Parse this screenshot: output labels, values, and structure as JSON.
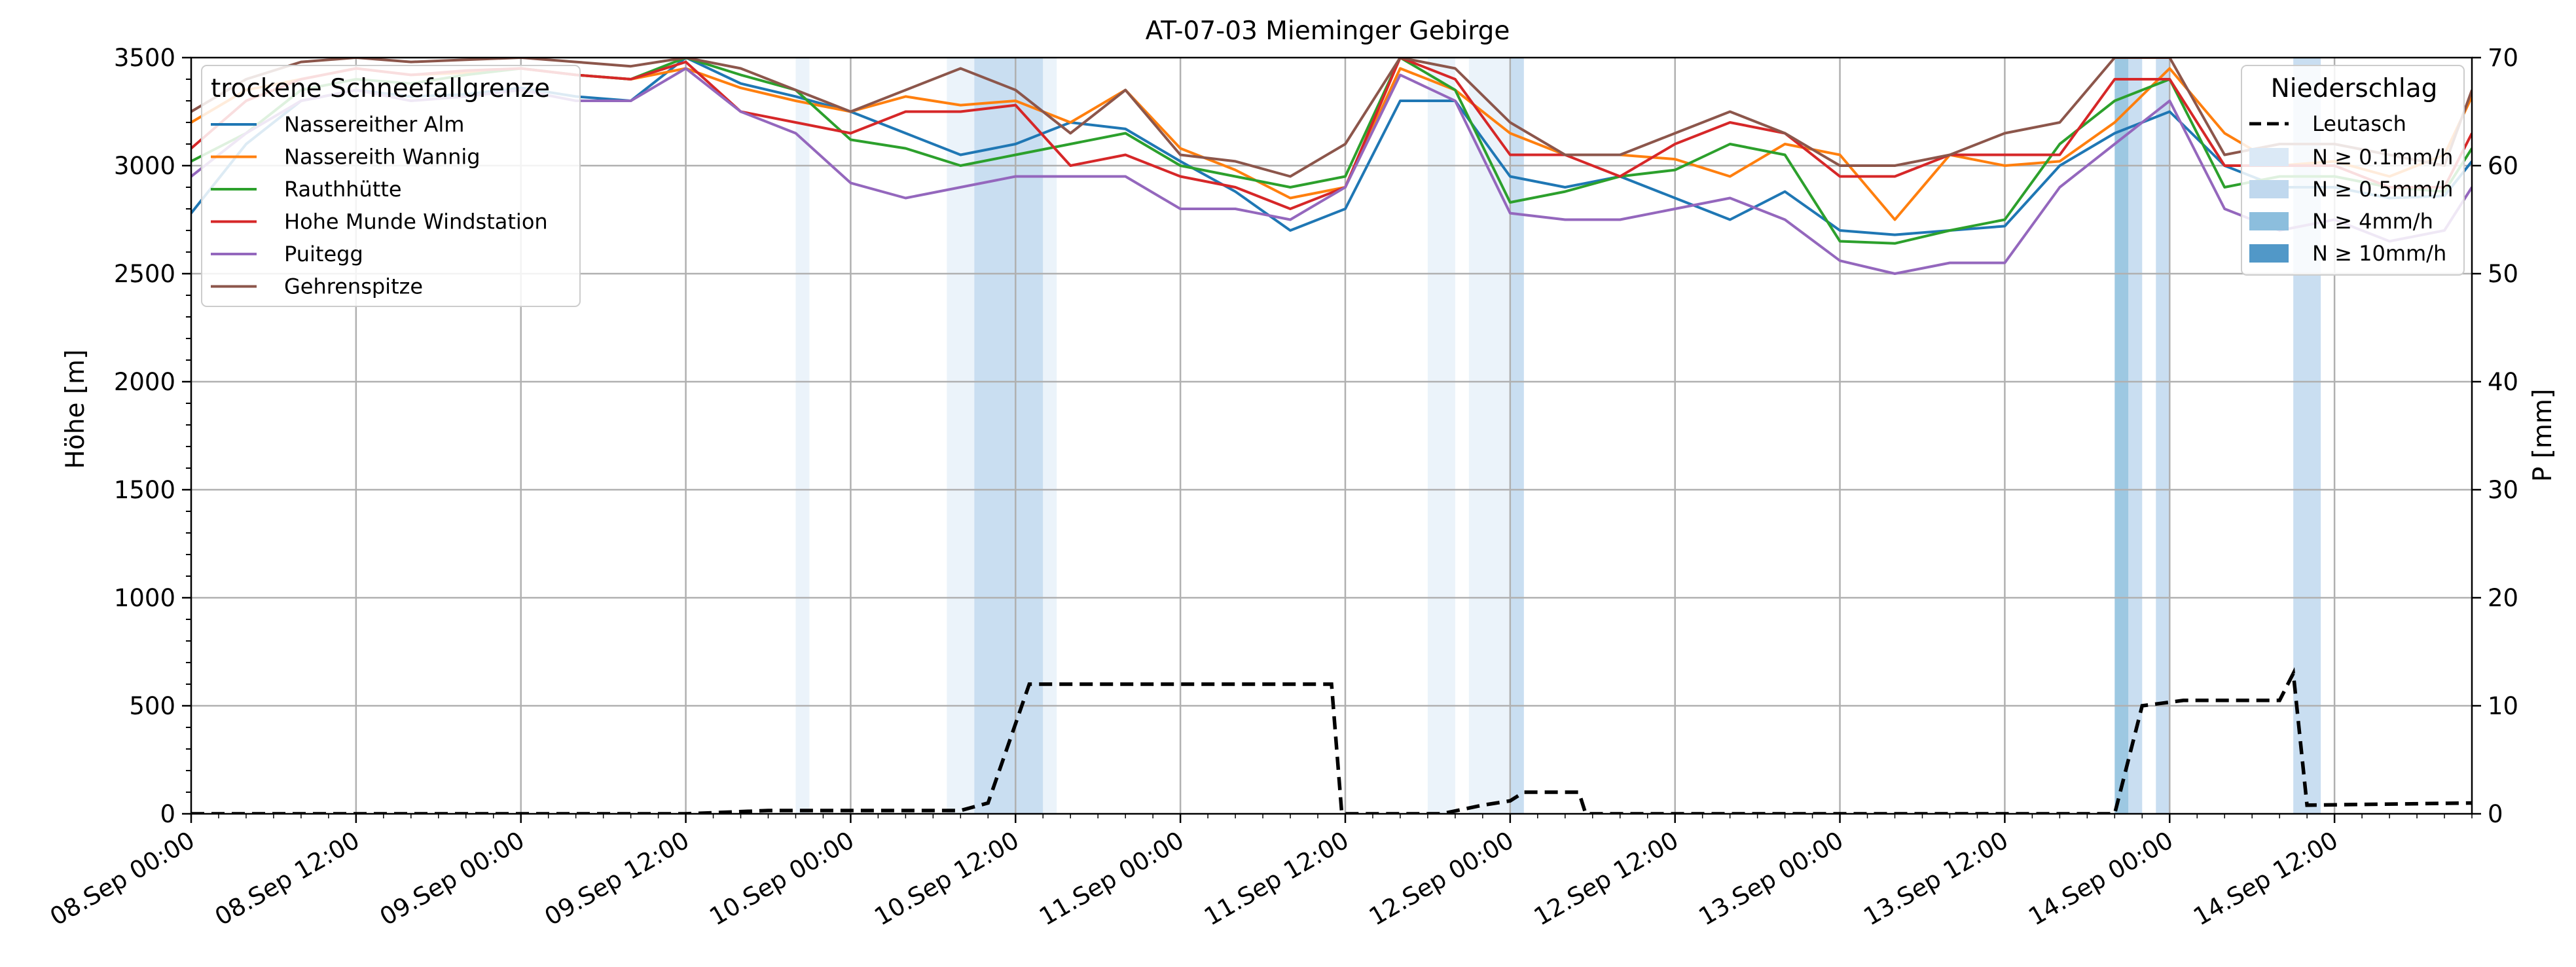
{
  "chart_data": {
    "type": "line",
    "title": "AT-07-03 Mieminger Gebirge",
    "ylabel": "Höhe [m]",
    "y2label": "P [mm]",
    "ylim": [
      0,
      3500
    ],
    "y2lim": [
      0,
      70
    ],
    "xlim": [
      "2023-09-08 00:00",
      "2023-09-14 22:00"
    ],
    "grid": true,
    "yticks": [
      "0",
      "500",
      "1000",
      "1500",
      "2000",
      "2500",
      "3000",
      "3500"
    ],
    "y2ticks": [
      "0",
      "10",
      "20",
      "30",
      "40",
      "50",
      "60",
      "70"
    ],
    "xticks": [
      {
        "t": "2023-09-08 00:00",
        "label": "08.Sep 00:00"
      },
      {
        "t": "2023-09-08 12:00",
        "label": "08.Sep 12:00"
      },
      {
        "t": "2023-09-09 00:00",
        "label": "09.Sep 00:00"
      },
      {
        "t": "2023-09-09 12:00",
        "label": "09.Sep 12:00"
      },
      {
        "t": "2023-09-10 00:00",
        "label": "10.Sep 00:00"
      },
      {
        "t": "2023-09-10 12:00",
        "label": "10.Sep 12:00"
      },
      {
        "t": "2023-09-11 00:00",
        "label": "11.Sep 00:00"
      },
      {
        "t": "2023-09-11 12:00",
        "label": "11.Sep 12:00"
      },
      {
        "t": "2023-09-12 00:00",
        "label": "12.Sep 00:00"
      },
      {
        "t": "2023-09-12 12:00",
        "label": "12.Sep 12:00"
      },
      {
        "t": "2023-09-13 00:00",
        "label": "13.Sep 00:00"
      },
      {
        "t": "2023-09-13 12:00",
        "label": "13.Sep 12:00"
      },
      {
        "t": "2023-09-14 00:00",
        "label": "14.Sep 00:00"
      },
      {
        "t": "2023-09-14 12:00",
        "label": "14.Sep 12:00"
      }
    ],
    "legend_snow": {
      "title": "trockene Schneefallgrenze",
      "placement": "top-left"
    },
    "legend_precip": {
      "title": "Niederschlag",
      "placement": "top-right",
      "line_label": "Leutasch",
      "levels": [
        {
          "label": "N ≥ 0.1mm/h",
          "color": "#dbe9f6"
        },
        {
          "label": "N ≥ 0.5mm/h",
          "color": "#c0d8ee"
        },
        {
          "label": "N ≥ 4mm/h",
          "color": "#8cbedd"
        },
        {
          "label": "N ≥ 10mm/h",
          "color": "#5198c8"
        }
      ]
    },
    "series": [
      {
        "name": "Nassereither Alm",
        "color": "#1f77b4",
        "t": [
          "2023-09-08 00:00",
          "2023-09-08 04:00",
          "2023-09-08 08:00",
          "2023-09-08 12:00",
          "2023-09-08 16:00",
          "2023-09-08 20:00",
          "2023-09-09 00:00",
          "2023-09-09 04:00",
          "2023-09-09 08:00",
          "2023-09-09 12:00",
          "2023-09-09 16:00",
          "2023-09-09 20:00",
          "2023-09-10 00:00",
          "2023-09-10 04:00",
          "2023-09-10 08:00",
          "2023-09-10 12:00",
          "2023-09-10 16:00",
          "2023-09-10 20:00",
          "2023-09-11 00:00",
          "2023-09-11 04:00",
          "2023-09-11 08:00",
          "2023-09-11 12:00",
          "2023-09-11 16:00",
          "2023-09-11 20:00",
          "2023-09-12 00:00",
          "2023-09-12 04:00",
          "2023-09-12 08:00",
          "2023-09-12 12:00",
          "2023-09-12 16:00",
          "2023-09-12 20:00",
          "2023-09-13 00:00",
          "2023-09-13 04:00",
          "2023-09-13 08:00",
          "2023-09-13 12:00",
          "2023-09-13 16:00",
          "2023-09-13 20:00",
          "2023-09-14 00:00",
          "2023-09-14 04:00",
          "2023-09-14 08:00",
          "2023-09-14 12:00",
          "2023-09-14 16:00",
          "2023-09-14 20:00",
          "2023-09-14 22:00"
        ],
        "values": [
          2780,
          3100,
          3300,
          3350,
          3320,
          3330,
          3360,
          3320,
          3300,
          3500,
          3380,
          3320,
          3250,
          3150,
          3050,
          3100,
          3200,
          3170,
          3020,
          2880,
          2700,
          2800,
          3300,
          3300,
          2950,
          2900,
          2950,
          2850,
          2750,
          2880,
          2700,
          2680,
          2700,
          2720,
          3000,
          3150,
          3250,
          3000,
          2900,
          2900,
          2850,
          2860,
          3020
        ]
      },
      {
        "name": "Nassereith Wannig",
        "color": "#ff7f0e",
        "t": [
          "2023-09-08 00:00",
          "2023-09-08 04:00",
          "2023-09-08 08:00",
          "2023-09-08 12:00",
          "2023-09-08 16:00",
          "2023-09-08 20:00",
          "2023-09-09 00:00",
          "2023-09-09 04:00",
          "2023-09-09 08:00",
          "2023-09-09 12:00",
          "2023-09-09 16:00",
          "2023-09-09 20:00",
          "2023-09-10 00:00",
          "2023-09-10 04:00",
          "2023-09-10 08:00",
          "2023-09-10 12:00",
          "2023-09-10 16:00",
          "2023-09-10 20:00",
          "2023-09-11 00:00",
          "2023-09-11 04:00",
          "2023-09-11 08:00",
          "2023-09-11 12:00",
          "2023-09-11 16:00",
          "2023-09-11 20:00",
          "2023-09-12 00:00",
          "2023-09-12 04:00",
          "2023-09-12 08:00",
          "2023-09-12 12:00",
          "2023-09-12 16:00",
          "2023-09-12 20:00",
          "2023-09-13 00:00",
          "2023-09-13 04:00",
          "2023-09-13 08:00",
          "2023-09-13 12:00",
          "2023-09-13 16:00",
          "2023-09-13 20:00",
          "2023-09-14 00:00",
          "2023-09-14 04:00",
          "2023-09-14 08:00",
          "2023-09-14 12:00",
          "2023-09-14 16:00",
          "2023-09-14 20:00",
          "2023-09-14 22:00"
        ],
        "values": [
          3200,
          3350,
          3400,
          3450,
          3420,
          3430,
          3450,
          3420,
          3400,
          3450,
          3360,
          3300,
          3250,
          3320,
          3280,
          3300,
          3200,
          3350,
          3080,
          2980,
          2850,
          2900,
          3450,
          3350,
          3150,
          3050,
          3050,
          3030,
          2950,
          3100,
          3050,
          2750,
          3050,
          3000,
          3020,
          3200,
          3450,
          3150,
          3000,
          3020,
          2950,
          3050,
          3320
        ]
      },
      {
        "name": "Rauthhütte",
        "color": "#2ca02c",
        "t": [
          "2023-09-08 00:00",
          "2023-09-08 04:00",
          "2023-09-08 08:00",
          "2023-09-08 12:00",
          "2023-09-08 16:00",
          "2023-09-08 20:00",
          "2023-09-09 00:00",
          "2023-09-09 04:00",
          "2023-09-09 08:00",
          "2023-09-09 12:00",
          "2023-09-09 16:00",
          "2023-09-09 20:00",
          "2023-09-10 00:00",
          "2023-09-10 04:00",
          "2023-09-10 08:00",
          "2023-09-10 12:00",
          "2023-09-10 16:00",
          "2023-09-10 20:00",
          "2023-09-11 00:00",
          "2023-09-11 04:00",
          "2023-09-11 08:00",
          "2023-09-11 12:00",
          "2023-09-11 16:00",
          "2023-09-11 20:00",
          "2023-09-12 00:00",
          "2023-09-12 04:00",
          "2023-09-12 08:00",
          "2023-09-12 12:00",
          "2023-09-12 16:00",
          "2023-09-12 20:00",
          "2023-09-13 00:00",
          "2023-09-13 04:00",
          "2023-09-13 08:00",
          "2023-09-13 12:00",
          "2023-09-13 16:00",
          "2023-09-13 20:00",
          "2023-09-14 00:00",
          "2023-09-14 04:00",
          "2023-09-14 08:00",
          "2023-09-14 12:00",
          "2023-09-14 16:00",
          "2023-09-14 20:00",
          "2023-09-14 22:00"
        ],
        "values": [
          3020,
          3150,
          3350,
          3400,
          3380,
          3420,
          3450,
          3420,
          3400,
          3500,
          3420,
          3350,
          3120,
          3080,
          3000,
          3050,
          3100,
          3150,
          3000,
          2950,
          2900,
          2950,
          3500,
          3350,
          2830,
          2880,
          2950,
          2980,
          3100,
          3050,
          2650,
          2640,
          2700,
          2750,
          3100,
          3300,
          3400,
          2900,
          2950,
          2950,
          2900,
          2880,
          3080
        ]
      },
      {
        "name": "Hohe Munde Windstation",
        "color": "#d62728",
        "t": [
          "2023-09-08 00:00",
          "2023-09-08 04:00",
          "2023-09-08 08:00",
          "2023-09-08 12:00",
          "2023-09-08 16:00",
          "2023-09-08 20:00",
          "2023-09-09 00:00",
          "2023-09-09 04:00",
          "2023-09-09 08:00",
          "2023-09-09 12:00",
          "2023-09-09 16:00",
          "2023-09-09 20:00",
          "2023-09-10 00:00",
          "2023-09-10 04:00",
          "2023-09-10 08:00",
          "2023-09-10 12:00",
          "2023-09-10 16:00",
          "2023-09-10 20:00",
          "2023-09-11 00:00",
          "2023-09-11 04:00",
          "2023-09-11 08:00",
          "2023-09-11 12:00",
          "2023-09-11 16:00",
          "2023-09-11 20:00",
          "2023-09-12 00:00",
          "2023-09-12 04:00",
          "2023-09-12 08:00",
          "2023-09-12 12:00",
          "2023-09-12 16:00",
          "2023-09-12 20:00",
          "2023-09-13 00:00",
          "2023-09-13 04:00",
          "2023-09-13 08:00",
          "2023-09-13 12:00",
          "2023-09-13 16:00",
          "2023-09-13 20:00",
          "2023-09-14 00:00",
          "2023-09-14 04:00",
          "2023-09-14 08:00",
          "2023-09-14 12:00",
          "2023-09-14 16:00",
          "2023-09-14 20:00",
          "2023-09-14 22:00"
        ],
        "values": [
          3080,
          3300,
          3400,
          3450,
          3420,
          3440,
          3450,
          3420,
          3400,
          3480,
          3250,
          3200,
          3150,
          3250,
          3250,
          3280,
          3000,
          3050,
          2950,
          2900,
          2800,
          2900,
          3500,
          3400,
          3050,
          3050,
          2950,
          3100,
          3200,
          3150,
          2950,
          2950,
          3050,
          3050,
          3050,
          3400,
          3400,
          3000,
          3000,
          3000,
          2900,
          2900,
          3150
        ]
      },
      {
        "name": "Puitegg",
        "color": "#9467bd",
        "t": [
          "2023-09-08 00:00",
          "2023-09-08 04:00",
          "2023-09-08 08:00",
          "2023-09-08 12:00",
          "2023-09-08 16:00",
          "2023-09-08 20:00",
          "2023-09-09 00:00",
          "2023-09-09 04:00",
          "2023-09-09 08:00",
          "2023-09-09 12:00",
          "2023-09-09 16:00",
          "2023-09-09 20:00",
          "2023-09-10 00:00",
          "2023-09-10 04:00",
          "2023-09-10 08:00",
          "2023-09-10 12:00",
          "2023-09-10 16:00",
          "2023-09-10 20:00",
          "2023-09-11 00:00",
          "2023-09-11 04:00",
          "2023-09-11 08:00",
          "2023-09-11 12:00",
          "2023-09-11 16:00",
          "2023-09-11 20:00",
          "2023-09-12 00:00",
          "2023-09-12 04:00",
          "2023-09-12 08:00",
          "2023-09-12 12:00",
          "2023-09-12 16:00",
          "2023-09-12 20:00",
          "2023-09-13 00:00",
          "2023-09-13 04:00",
          "2023-09-13 08:00",
          "2023-09-13 12:00",
          "2023-09-13 16:00",
          "2023-09-13 20:00",
          "2023-09-14 00:00",
          "2023-09-14 04:00",
          "2023-09-14 08:00",
          "2023-09-14 12:00",
          "2023-09-14 16:00",
          "2023-09-14 20:00",
          "2023-09-14 22:00"
        ],
        "values": [
          2950,
          3150,
          3300,
          3350,
          3300,
          3320,
          3350,
          3300,
          3300,
          3450,
          3250,
          3150,
          2920,
          2850,
          2900,
          2950,
          2950,
          2950,
          2800,
          2800,
          2750,
          2900,
          3420,
          3300,
          2780,
          2750,
          2750,
          2800,
          2850,
          2750,
          2560,
          2500,
          2550,
          2550,
          2900,
          3100,
          3300,
          2800,
          2700,
          2750,
          2650,
          2700,
          2900
        ]
      },
      {
        "name": "Gehrenspitze",
        "color": "#8c564b",
        "t": [
          "2023-09-08 00:00",
          "2023-09-08 04:00",
          "2023-09-08 08:00",
          "2023-09-08 12:00",
          "2023-09-08 16:00",
          "2023-09-08 20:00",
          "2023-09-09 00:00",
          "2023-09-09 04:00",
          "2023-09-09 08:00",
          "2023-09-09 12:00",
          "2023-09-09 16:00",
          "2023-09-09 20:00",
          "2023-09-10 00:00",
          "2023-09-10 04:00",
          "2023-09-10 08:00",
          "2023-09-10 12:00",
          "2023-09-10 16:00",
          "2023-09-10 20:00",
          "2023-09-11 00:00",
          "2023-09-11 04:00",
          "2023-09-11 08:00",
          "2023-09-11 12:00",
          "2023-09-11 16:00",
          "2023-09-11 20:00",
          "2023-09-12 00:00",
          "2023-09-12 04:00",
          "2023-09-12 08:00",
          "2023-09-12 12:00",
          "2023-09-12 16:00",
          "2023-09-12 20:00",
          "2023-09-13 00:00",
          "2023-09-13 04:00",
          "2023-09-13 08:00",
          "2023-09-13 12:00",
          "2023-09-13 16:00",
          "2023-09-13 20:00",
          "2023-09-14 00:00",
          "2023-09-14 04:00",
          "2023-09-14 08:00",
          "2023-09-14 12:00",
          "2023-09-14 16:00",
          "2023-09-14 20:00",
          "2023-09-14 22:00"
        ],
        "values": [
          3250,
          3400,
          3480,
          3500,
          3480,
          3490,
          3500,
          3480,
          3460,
          3500,
          3450,
          3350,
          3250,
          3350,
          3450,
          3350,
          3150,
          3350,
          3050,
          3020,
          2950,
          3100,
          3500,
          3450,
          3200,
          3050,
          3050,
          3150,
          3250,
          3150,
          3000,
          3000,
          3050,
          3150,
          3200,
          3500,
          3500,
          3050,
          3100,
          3100,
          3050,
          3000,
          3350
        ]
      }
    ],
    "precip_line": {
      "name": "Leutasch",
      "color": "#000000",
      "t": [
        "2023-09-08 00:00",
        "2023-09-09 12:00",
        "2023-09-09 18:00",
        "2023-09-10 08:00",
        "2023-09-10 10:00",
        "2023-09-10 13:00",
        "2023-09-11 11:00",
        "2023-09-11 11:45",
        "2023-09-11 19:00",
        "2023-09-11 22:00",
        "2023-09-12 00:00",
        "2023-09-12 01:00",
        "2023-09-12 05:00",
        "2023-09-12 05:30",
        "2023-09-13 12:00",
        "2023-09-13 20:00",
        "2023-09-13 22:00",
        "2023-09-14 01:00",
        "2023-09-14 08:00",
        "2023-09-14 09:00",
        "2023-09-14 10:00",
        "2023-09-14 22:00"
      ],
      "values": [
        0,
        0,
        0.3,
        0.3,
        1,
        12,
        12,
        0,
        0,
        0.8,
        1.2,
        2,
        2,
        0,
        0,
        0,
        10,
        10.5,
        10.5,
        13,
        0.8,
        1
      ]
    },
    "precip_bands": [
      {
        "start": "2023-09-09 20:00",
        "end": "2023-09-09 21:00",
        "level": 0
      },
      {
        "start": "2023-09-10 07:00",
        "end": "2023-09-10 09:00",
        "level": 0
      },
      {
        "start": "2023-09-10 09:00",
        "end": "2023-09-10 14:00",
        "level": 1
      },
      {
        "start": "2023-09-10 14:00",
        "end": "2023-09-10 15:00",
        "level": 0
      },
      {
        "start": "2023-09-11 18:00",
        "end": "2023-09-11 20:00",
        "level": 0
      },
      {
        "start": "2023-09-11 21:00",
        "end": "2023-09-12 00:00",
        "level": 0
      },
      {
        "start": "2023-09-12 00:00",
        "end": "2023-09-12 01:00",
        "level": 1
      },
      {
        "start": "2023-09-13 20:00",
        "end": "2023-09-13 21:00",
        "level": 2
      },
      {
        "start": "2023-09-13 21:00",
        "end": "2023-09-13 22:00",
        "level": 1
      },
      {
        "start": "2023-09-13 23:00",
        "end": "2023-09-14 00:00",
        "level": 1
      },
      {
        "start": "2023-09-14 09:00",
        "end": "2023-09-14 11:00",
        "level": 1
      }
    ]
  }
}
